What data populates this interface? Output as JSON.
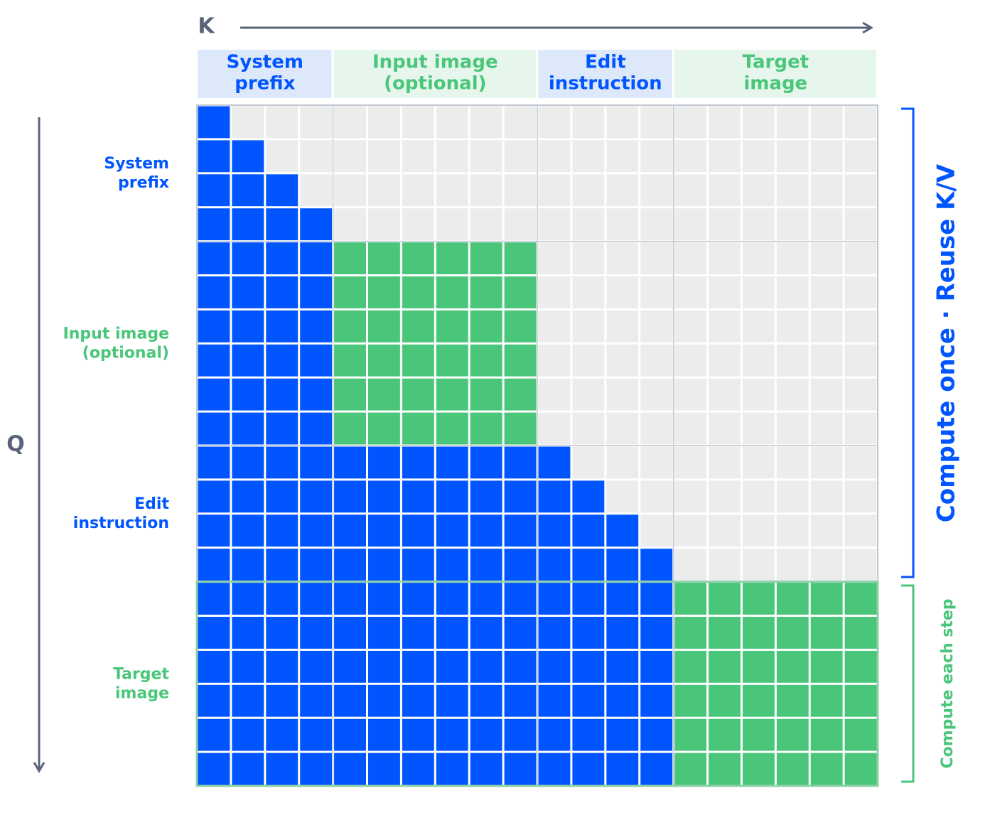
{
  "k_label": "K",
  "q_label": "Q",
  "segments": [
    {
      "label": [
        "System",
        "prefix"
      ],
      "kind": "blue"
    },
    {
      "label": [
        "Input image",
        "(optional)"
      ],
      "kind": "green"
    },
    {
      "label": [
        "Edit",
        "instruction"
      ],
      "kind": "blue"
    },
    {
      "label": [
        "Target",
        "image"
      ],
      "kind": "green"
    }
  ],
  "bracket_cached": "Compute once · Reuse K/V",
  "bracket_step": "Compute each step"
}
